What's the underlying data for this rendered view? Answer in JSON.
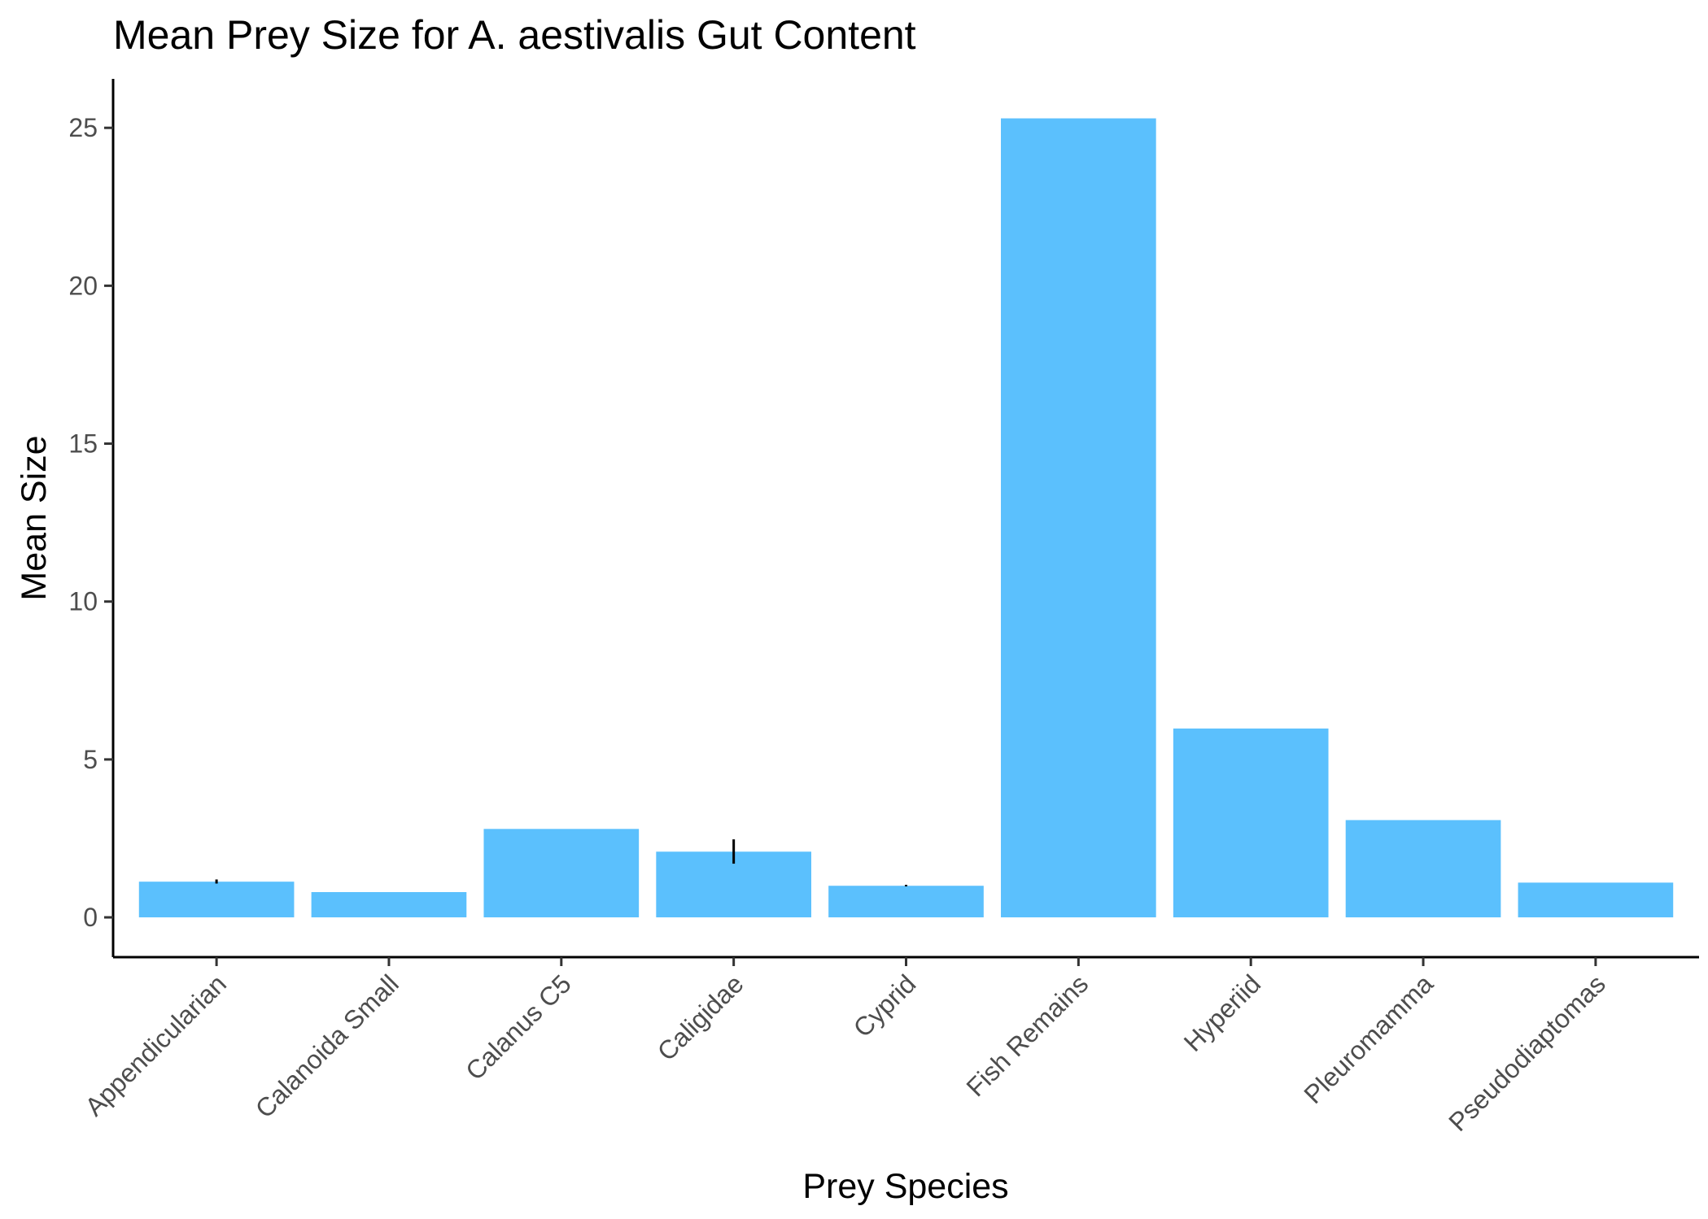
{
  "chart_data": {
    "type": "bar",
    "title": "Mean Prey Size for A. aestivalis Gut Content",
    "xlabel": "Prey Species",
    "ylabel": "Mean Size",
    "categories": [
      "Appendicularian",
      "Calanoida Small",
      "Calanus C5",
      "Caligidae",
      "Cyprid",
      "Fish Remains",
      "Hyperiid",
      "Pleuromamma",
      "Pseudodiaptomas"
    ],
    "values": [
      1.13,
      0.8,
      2.8,
      2.08,
      1.0,
      25.3,
      5.98,
      3.08,
      1.1
    ],
    "error_bars": [
      {
        "low": 1.07,
        "high": 1.2
      },
      null,
      null,
      {
        "low": 1.7,
        "high": 2.47
      },
      {
        "low": 0.98,
        "high": 1.03
      },
      null,
      null,
      null,
      null
    ],
    "y_ticks": [
      0,
      5,
      10,
      15,
      20,
      25
    ],
    "ylim": [
      -1.26,
      26.55
    ],
    "bar_color": "#5bc0fd",
    "grid": false,
    "legend": "none"
  }
}
